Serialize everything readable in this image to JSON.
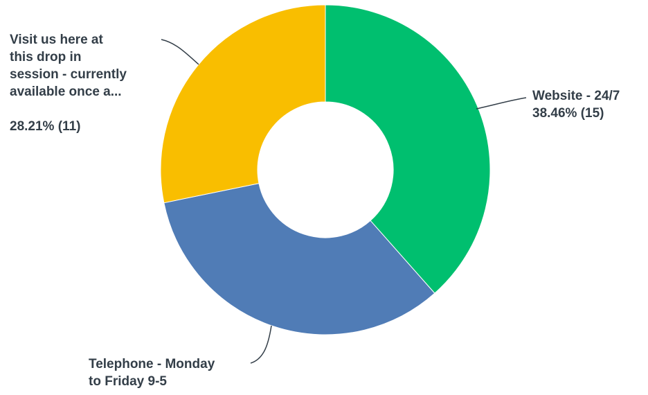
{
  "chart_data": {
    "type": "pie",
    "donut": true,
    "slices": [
      {
        "key": "website",
        "label_lines": [
          "Website - 24/7"
        ],
        "percent_text": "38.46% (15)",
        "percent": 38.46,
        "count": 15,
        "color": "#00bf6f"
      },
      {
        "key": "telephone",
        "label_lines": [
          "Telephone - Monday",
          "to Friday 9-5"
        ],
        "percent_text": "",
        "percent": 33.33,
        "count": 13,
        "color": "#507cb6"
      },
      {
        "key": "visit",
        "label_lines": [
          "Visit us here at",
          "this drop in",
          "session - currently",
          "available once a..."
        ],
        "percent_text": "28.21% (11)",
        "percent": 28.21,
        "count": 11,
        "color": "#f9be00"
      }
    ]
  }
}
